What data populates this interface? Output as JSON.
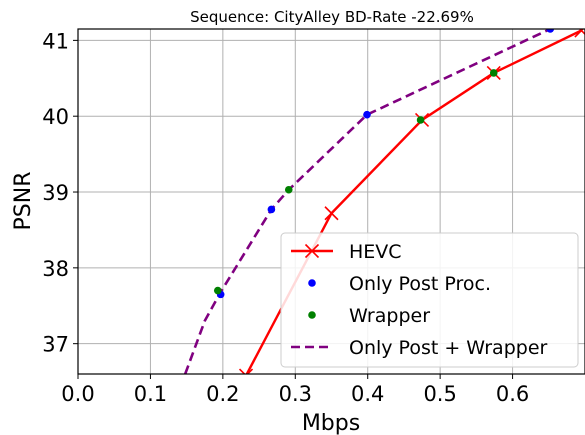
{
  "chart_data": {
    "type": "line",
    "title": "Sequence: CityAlley  BD-Rate -22.69%",
    "xlabel": "Mbps",
    "ylabel": "PSNR",
    "xlim": [
      0.0,
      0.7
    ],
    "ylim": [
      36.6,
      41.15
    ],
    "x_ticks": [
      "0.0",
      "0.1",
      "0.2",
      "0.3",
      "0.4",
      "0.5",
      "0.6"
    ],
    "x_tick_values": [
      0.0,
      0.1,
      0.2,
      0.3,
      0.4,
      0.5,
      0.6
    ],
    "y_ticks": [
      "37",
      "38",
      "39",
      "40",
      "41"
    ],
    "y_tick_values": [
      37,
      38,
      39,
      40,
      41
    ],
    "grid": true,
    "legend_position": "lower-right",
    "series": [
      {
        "name": "HEVC",
        "style": "solid-line-x-marker",
        "color": "#ff0000",
        "x": [
          0.232,
          0.35,
          0.475,
          0.574,
          0.695
        ],
        "y": [
          36.58,
          38.72,
          39.95,
          40.57,
          41.13
        ]
      },
      {
        "name": "Only Post Proc.",
        "style": "points",
        "color": "#0000ff",
        "x": [
          0.197,
          0.267,
          0.399,
          0.652
        ],
        "y": [
          37.65,
          38.77,
          40.02,
          41.15
        ]
      },
      {
        "name": "Wrapper",
        "style": "points",
        "color": "#008000",
        "x": [
          0.193,
          0.291,
          0.473,
          0.574
        ],
        "y": [
          37.7,
          39.03,
          39.95,
          40.57
        ]
      },
      {
        "name": "Only Post + Wrapper",
        "style": "dashed-line",
        "color": "#800080",
        "x": [
          0.148,
          0.175,
          0.197,
          0.267,
          0.291,
          0.399,
          0.652
        ],
        "y": [
          36.6,
          37.3,
          37.68,
          38.77,
          39.03,
          40.02,
          41.15
        ]
      }
    ]
  }
}
